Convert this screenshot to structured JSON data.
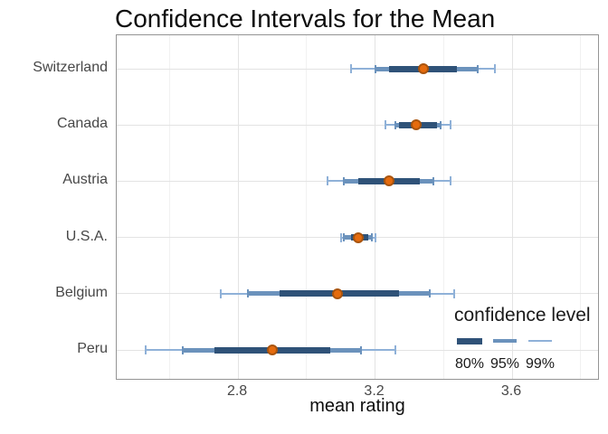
{
  "chart_data": {
    "type": "pointinterval",
    "title": "Confidence Intervals for the Mean",
    "xlabel": "mean rating",
    "xlim": [
      2.446,
      3.856
    ],
    "x_major_ticks": [
      {
        "value": 2.8,
        "label": "2.8"
      },
      {
        "value": 3.2,
        "label": "3.2"
      },
      {
        "value": 3.6,
        "label": "3.6"
      }
    ],
    "x_minor_ticks": [
      2.6,
      3.0,
      3.4,
      3.8
    ],
    "grid": true,
    "categories": [
      "Switzerland",
      "Canada",
      "Austria",
      "U.S.A.",
      "Belgium",
      "Peru"
    ],
    "series": [
      {
        "country": "Switzerland",
        "mean": 3.34,
        "ci80": [
          3.24,
          3.44
        ],
        "ci95": [
          3.2,
          3.5
        ],
        "ci99": [
          3.13,
          3.55
        ]
      },
      {
        "country": "Canada",
        "mean": 3.32,
        "ci80": [
          3.27,
          3.38
        ],
        "ci95": [
          3.26,
          3.39
        ],
        "ci99": [
          3.23,
          3.42
        ]
      },
      {
        "country": "Austria",
        "mean": 3.24,
        "ci80": [
          3.15,
          3.33
        ],
        "ci95": [
          3.11,
          3.37
        ],
        "ci99": [
          3.06,
          3.42
        ]
      },
      {
        "country": "U.S.A.",
        "mean": 3.15,
        "ci80": [
          3.13,
          3.18
        ],
        "ci95": [
          3.11,
          3.19
        ],
        "ci99": [
          3.1,
          3.2
        ]
      },
      {
        "country": "Belgium",
        "mean": 3.09,
        "ci80": [
          2.92,
          3.27
        ],
        "ci95": [
          2.83,
          3.36
        ],
        "ci99": [
          2.75,
          3.43
        ]
      },
      {
        "country": "Peru",
        "mean": 2.9,
        "ci80": [
          2.73,
          3.07
        ],
        "ci95": [
          2.64,
          3.16
        ],
        "ci99": [
          2.53,
          3.26
        ]
      }
    ],
    "legend": {
      "title": "confidence level",
      "position": "bottom-right-inside",
      "items": [
        {
          "label": "80%",
          "level": "ci80"
        },
        {
          "label": "95%",
          "level": "ci95"
        },
        {
          "label": "99%",
          "level": "ci99"
        }
      ]
    },
    "colors": {
      "ci80": "#2f5278",
      "ci95": "#6b92bc",
      "ci99": "#8fb1d8",
      "point_fill": "#e56b0e",
      "point_border": "#a9540e",
      "axis_text": "#474747",
      "grid_major": "#e3e3e3",
      "grid_minor": "#f1f1f1",
      "panel_border": "#949494"
    }
  }
}
